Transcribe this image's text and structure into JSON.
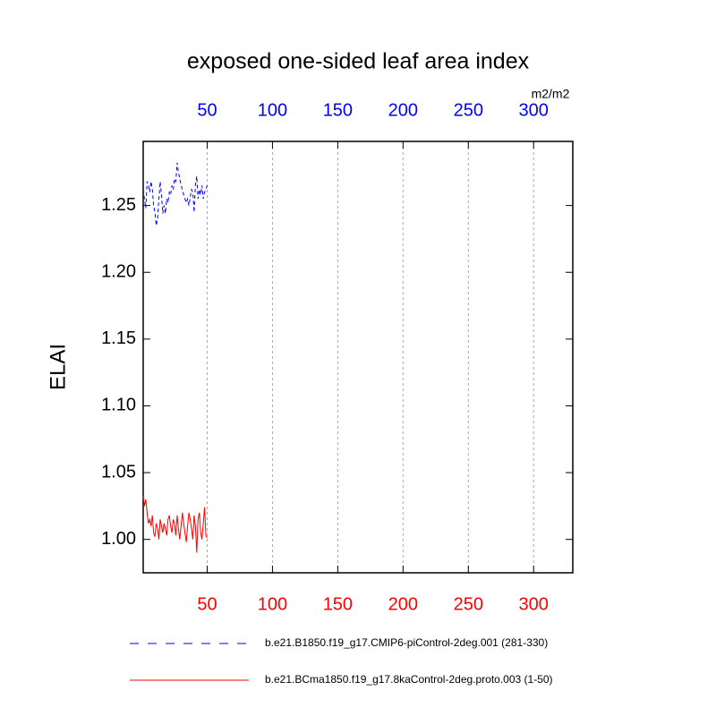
{
  "chart_data": {
    "type": "line",
    "title": "exposed one-sided leaf area index",
    "ylabel": "ELAI",
    "units": "m2/m2",
    "x": [
      1,
      2,
      3,
      4,
      5,
      6,
      7,
      8,
      9,
      10,
      11,
      12,
      13,
      14,
      15,
      16,
      17,
      18,
      19,
      20,
      21,
      22,
      23,
      24,
      25,
      26,
      27,
      28,
      29,
      30,
      31,
      32,
      33,
      34,
      35,
      36,
      37,
      38,
      39,
      40,
      41,
      42,
      43,
      44,
      45,
      46,
      47,
      48,
      49,
      50
    ],
    "series": [
      {
        "name": "b.e21.B1850.f19_g17.CMIP6-piControl-2deg.001 (281-330)",
        "color": "#0000ff",
        "dashed": true,
        "values": [
          1.262,
          1.255,
          1.248,
          1.268,
          1.265,
          1.26,
          1.268,
          1.262,
          1.25,
          1.245,
          1.235,
          1.24,
          1.255,
          1.268,
          1.258,
          1.244,
          1.25,
          1.244,
          1.255,
          1.252,
          1.26,
          1.258,
          1.265,
          1.262,
          1.27,
          1.268,
          1.282,
          1.275,
          1.27,
          1.265,
          1.262,
          1.258,
          1.255,
          1.252,
          1.255,
          1.25,
          1.256,
          1.262,
          1.26,
          1.245,
          1.266,
          1.272,
          1.255,
          1.262,
          1.258,
          1.265,
          1.255,
          1.26,
          1.262,
          1.265
        ]
      },
      {
        "name": "b.e21.BCma1850.f19_g17.8kaControl-2deg.proto.003 (1-50)",
        "color": "#ff0000",
        "dashed": false,
        "values": [
          1.032,
          1.025,
          1.03,
          1.02,
          1.012,
          1.015,
          1.01,
          1.018,
          1.005,
          1.002,
          1.012,
          1.008,
          1.0,
          1.015,
          1.01,
          1.005,
          1.012,
          1.008,
          1.003,
          1.015,
          1.018,
          1.01,
          1.005,
          1.015,
          1.012,
          1.003,
          1.018,
          1.008,
          1.0,
          1.01,
          1.02,
          1.012,
          1.005,
          0.998,
          1.01,
          1.02,
          1.015,
          1.008,
          1.0,
          1.018,
          1.01,
          0.99,
          1.015,
          1.02,
          1.005,
          1.0,
          1.012,
          1.024,
          1.003,
          1.001
        ]
      }
    ],
    "xlim": [
      1,
      330
    ],
    "xticks": [
      50,
      100,
      150,
      200,
      250,
      300
    ],
    "top_tick_color": "#0000ff",
    "bottom_tick_color": "#ff0000",
    "ylim": [
      0.975,
      1.298
    ],
    "yticks": [
      {
        "value": 1.0,
        "label": "1.00"
      },
      {
        "value": 1.05,
        "label": "1.05"
      },
      {
        "value": 1.1,
        "label": "1.10"
      },
      {
        "value": 1.15,
        "label": "1.15"
      },
      {
        "value": 1.2,
        "label": "1.20"
      },
      {
        "value": 1.25,
        "label": "1.25"
      }
    ],
    "xgrid": true,
    "legend": "bottom"
  }
}
